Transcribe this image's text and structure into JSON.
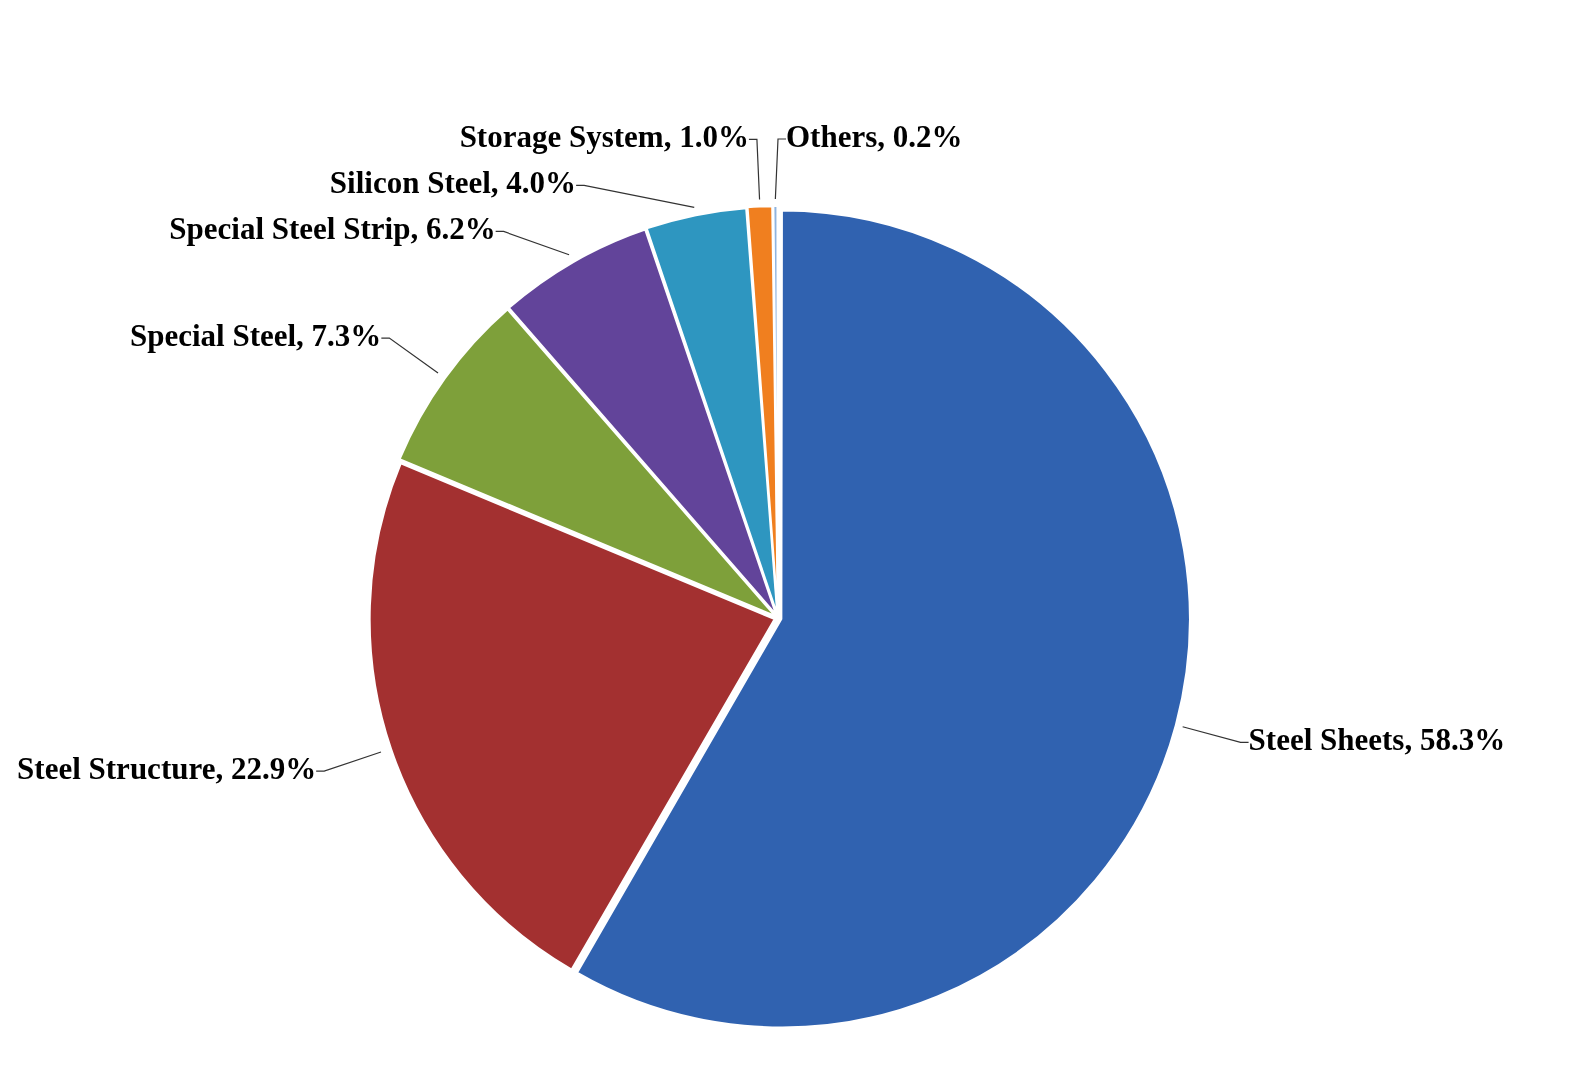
{
  "chart_data": {
    "type": "pie",
    "categories": [
      "Steel Sheets",
      "Steel Structure",
      "Special Steel",
      "Special Steel Strip",
      "Silicon Steel",
      "Storage System",
      "Others"
    ],
    "values": [
      58.3,
      22.9,
      7.3,
      6.2,
      4.0,
      1.0,
      0.2
    ],
    "value_labels": [
      "58.3%",
      "22.9%",
      "7.3%",
      "6.2%",
      "4.0%",
      "1.0%",
      "0.2%"
    ],
    "colors": [
      "#3062b0",
      "#a33030",
      "#7ea03a",
      "#62449a",
      "#2e96c0",
      "#f07f1f",
      "#8fb4e0"
    ],
    "legend": false
  }
}
